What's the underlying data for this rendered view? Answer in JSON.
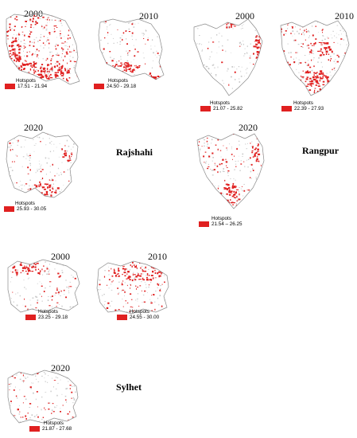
{
  "colors": {
    "hotspot": "#e02020",
    "outline": "#8a8a8a",
    "urban": "#c8c8c8"
  },
  "regions": [
    {
      "id": "khulna",
      "name": "",
      "maps": [
        {
          "year": "2000",
          "legend_title": "Hotspots",
          "legend_range": "17.51 - 21.94"
        },
        {
          "year": "2010",
          "legend_title": "Hotspots",
          "legend_range": "24.50 - 29.18"
        }
      ]
    },
    {
      "id": "rajshahi",
      "name": "Rajshahi",
      "maps": [
        {
          "year": "2020",
          "legend_title": "Hotspots",
          "legend_range": "25.93 - 30.05"
        }
      ]
    },
    {
      "id": "rangpur",
      "name": "Rangpur",
      "maps": [
        {
          "year": "2000",
          "legend_title": "Hotspots",
          "legend_range": "21.07 - 25.82"
        },
        {
          "year": "2010",
          "legend_title": "Hotspots",
          "legend_range": "22.39 - 27.93"
        },
        {
          "year": "2020",
          "legend_title": "Hotspots",
          "legend_range": "21.54 – 26.25"
        }
      ]
    },
    {
      "id": "sylhet",
      "name": "Sylhet",
      "maps": [
        {
          "year": "2000",
          "legend_title": "Hotspots",
          "legend_range": "23.25 - 29.18"
        },
        {
          "year": "2010",
          "legend_title": "Hotspots",
          "legend_range": "24.55 - 30.00"
        },
        {
          "year": "2020",
          "legend_title": "Hotspots",
          "legend_range": "21.87 - 27.68"
        }
      ]
    }
  ]
}
